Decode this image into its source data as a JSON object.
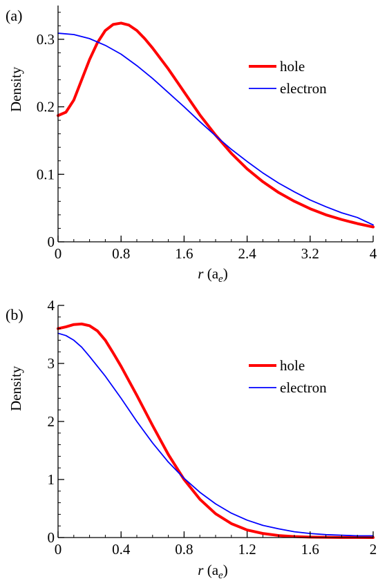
{
  "figure": {
    "panels": [
      "(a)",
      "(b)"
    ]
  },
  "chart_data": [
    {
      "type": "line",
      "panel_label": "(a)",
      "xlabel": {
        "main": "r",
        "open": " (a",
        "sub": "e",
        "close": ")"
      },
      "ylabel": "Density",
      "xlim": [
        0,
        4
      ],
      "ylim": [
        0,
        0.35
      ],
      "xticks": [
        0,
        0.8,
        1.6,
        2.4,
        3.2,
        4
      ],
      "xtick_labels": [
        "0",
        "0.8",
        "1.6",
        "2.4",
        "3.2",
        "4"
      ],
      "yticks": [
        0,
        0.1,
        0.2,
        0.3
      ],
      "ytick_labels": [
        "0",
        "0.1",
        "0.2",
        "0.3"
      ],
      "y_minor_step": 0.02,
      "x_minor_step": 0.2,
      "legend": {
        "placement": "top-right"
      },
      "series": [
        {
          "name": "hole",
          "color": "#ff0000",
          "width": 4,
          "x": [
            0,
            0.1,
            0.2,
            0.3,
            0.4,
            0.5,
            0.6,
            0.7,
            0.8,
            0.9,
            1.0,
            1.1,
            1.2,
            1.4,
            1.6,
            1.8,
            2.0,
            2.2,
            2.4,
            2.6,
            2.8,
            3.0,
            3.2,
            3.4,
            3.6,
            3.8,
            4.0
          ],
          "y": [
            0.187,
            0.192,
            0.21,
            0.24,
            0.27,
            0.295,
            0.313,
            0.322,
            0.324,
            0.321,
            0.313,
            0.301,
            0.287,
            0.256,
            0.222,
            0.188,
            0.158,
            0.131,
            0.108,
            0.089,
            0.073,
            0.06,
            0.049,
            0.04,
            0.033,
            0.027,
            0.022
          ]
        },
        {
          "name": "electron",
          "color": "#0000ff",
          "width": 1.8,
          "x": [
            0,
            0.2,
            0.4,
            0.6,
            0.8,
            1.0,
            1.2,
            1.4,
            1.6,
            1.8,
            2.0,
            2.2,
            2.4,
            2.6,
            2.8,
            3.0,
            3.2,
            3.4,
            3.6,
            3.8,
            4.0
          ],
          "y": [
            0.309,
            0.307,
            0.301,
            0.291,
            0.278,
            0.261,
            0.242,
            0.221,
            0.2,
            0.178,
            0.157,
            0.137,
            0.119,
            0.102,
            0.087,
            0.074,
            0.062,
            0.052,
            0.043,
            0.036,
            0.025
          ]
        }
      ]
    },
    {
      "type": "line",
      "panel_label": "(b)",
      "xlabel": {
        "main": "r",
        "open": " (a",
        "sub": "e",
        "close": ")"
      },
      "ylabel": "Density",
      "xlim": [
        0,
        2
      ],
      "ylim": [
        0,
        4
      ],
      "xticks": [
        0,
        0.4,
        0.8,
        1.2,
        1.6,
        2
      ],
      "xtick_labels": [
        "0",
        "0.4",
        "0.8",
        "1.2",
        "1.6",
        "2"
      ],
      "yticks": [
        0,
        1,
        2,
        3,
        4
      ],
      "ytick_labels": [
        "0",
        "1",
        "2",
        "3",
        "4"
      ],
      "y_minor_step": 0.2,
      "x_minor_step": 0.1,
      "legend": {
        "placement": "top-right"
      },
      "series": [
        {
          "name": "hole",
          "color": "#ff0000",
          "width": 4,
          "x": [
            0,
            0.05,
            0.1,
            0.15,
            0.2,
            0.25,
            0.3,
            0.35,
            0.4,
            0.45,
            0.5,
            0.6,
            0.7,
            0.8,
            0.9,
            1.0,
            1.1,
            1.2,
            1.3,
            1.4,
            1.5,
            1.6,
            1.7,
            1.8,
            1.9,
            2.0
          ],
          "y": [
            3.6,
            3.63,
            3.67,
            3.68,
            3.65,
            3.56,
            3.4,
            3.18,
            2.95,
            2.7,
            2.45,
            1.93,
            1.43,
            1.0,
            0.66,
            0.41,
            0.24,
            0.13,
            0.07,
            0.035,
            0.017,
            0.008,
            0.004,
            0.002,
            0.001,
            0.0
          ]
        },
        {
          "name": "electron",
          "color": "#0000ff",
          "width": 1.8,
          "x": [
            0,
            0.05,
            0.1,
            0.15,
            0.2,
            0.3,
            0.4,
            0.5,
            0.6,
            0.7,
            0.8,
            0.9,
            1.0,
            1.1,
            1.2,
            1.3,
            1.4,
            1.5,
            1.6,
            1.7,
            1.8,
            1.9,
            2.0
          ],
          "y": [
            3.52,
            3.48,
            3.4,
            3.28,
            3.12,
            2.78,
            2.4,
            2.0,
            1.63,
            1.3,
            1.02,
            0.78,
            0.58,
            0.42,
            0.3,
            0.21,
            0.15,
            0.1,
            0.07,
            0.05,
            0.04,
            0.03,
            0.03
          ]
        }
      ]
    }
  ]
}
